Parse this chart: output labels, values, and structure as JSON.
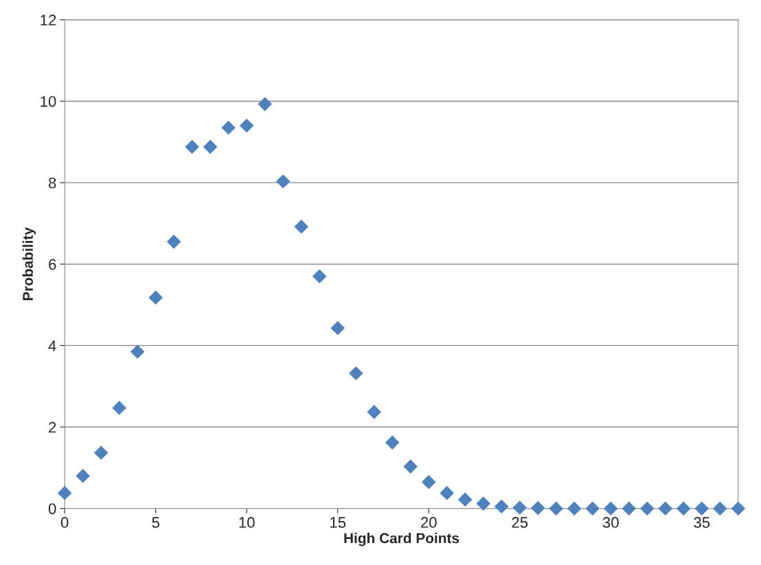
{
  "chart_data": {
    "type": "scatter",
    "xlabel": "High Card Points",
    "ylabel": "Probability",
    "x": [
      0,
      1,
      2,
      3,
      4,
      5,
      6,
      7,
      8,
      9,
      10,
      11,
      12,
      13,
      14,
      15,
      16,
      17,
      18,
      19,
      20,
      21,
      22,
      23,
      24,
      25,
      26,
      27,
      28,
      29,
      30,
      31,
      32,
      33,
      34,
      35,
      36,
      37
    ],
    "series": [
      {
        "color": "#4f81bd",
        "values": [
          0.38,
          0.8,
          1.37,
          2.47,
          3.85,
          5.18,
          6.55,
          8.88,
          8.88,
          9.35,
          9.4,
          9.93,
          8.03,
          6.92,
          5.7,
          4.43,
          3.32,
          2.37,
          1.62,
          1.03,
          0.65,
          0.38,
          0.22,
          0.12,
          0.05,
          0.02,
          0.01,
          0,
          0,
          0,
          0,
          0,
          0,
          0,
          0,
          0,
          0,
          0
        ]
      }
    ],
    "xlim": [
      0,
      37
    ],
    "xticks": [
      0,
      5,
      10,
      15,
      20,
      25,
      30,
      35
    ],
    "ylim": [
      0,
      12
    ],
    "yticks": [
      0,
      2,
      4,
      6,
      8,
      10,
      12
    ],
    "grid": "y",
    "marker": "diamond"
  }
}
